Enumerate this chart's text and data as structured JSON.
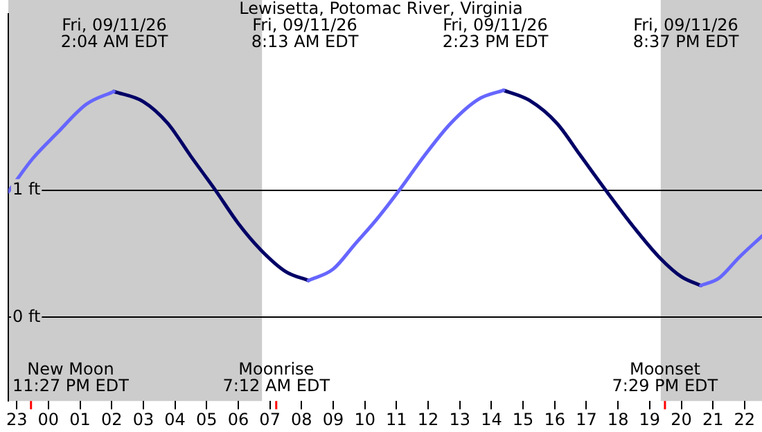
{
  "chart_data": {
    "type": "line",
    "title": "Lewisetta, Potomac River, Virginia",
    "series": [
      {
        "color": "#6666ff",
        "x": [
          "--09-10T22:44",
          "--09-10T23:30",
          "--09-11T00:16",
          "--09-11T01:12",
          "--09-11T02:04",
          "--09-11T05:00",
          "--09-11T08:13",
          "--09-11T09:00",
          "--09-11T09:40",
          "--09-11T10:24",
          "--09-11T11:05",
          "--09-11T11:54",
          "--09-11T12:43",
          "--09-11T13:36",
          "--09-11T14:23",
          "--09-11T18:00",
          "--09-11T20:37",
          "--09-11T21:12",
          "--09-11T21:49",
          "--09-11T22:33"
        ],
        "values": [
          0.99,
          1.25,
          1.45,
          1.68,
          1.78,
          null,
          0.29,
          0.38,
          0.57,
          0.78,
          1.0,
          1.28,
          1.53,
          1.72,
          1.79,
          null,
          0.25,
          0.31,
          0.47,
          0.64
        ]
      },
      {
        "color": "#000066",
        "x": [
          "--09-11T02:04",
          "--09-11T03:00",
          "--09-11T03:46",
          "--09-11T04:30",
          "--09-11T05:17",
          "--09-11T06:00",
          "--09-11T06:43",
          "--09-11T07:30",
          "--09-11T08:13",
          "--09-11T11:00",
          "--09-11T14:23",
          "--09-11T15:12",
          "--09-11T16:04",
          "--09-11T16:48",
          "--09-11T17:37",
          "--09-11T18:30",
          "--09-11T19:19",
          "--09-11T20:00",
          "--09-11T20:37"
        ],
        "values": [
          1.78,
          1.7,
          1.53,
          1.27,
          1.0,
          0.74,
          0.53,
          0.36,
          0.29,
          null,
          1.79,
          1.71,
          1.53,
          1.28,
          1.0,
          0.71,
          0.47,
          0.32,
          0.25
        ]
      }
    ],
    "xlim": [
      "--09-10T22:44",
      "--09-11T22:33"
    ],
    "xticks": [
      {
        "value": "--09-10T23:00",
        "label": "23"
      },
      {
        "value": "--09-11T00:00",
        "label": "00"
      },
      {
        "value": "--09-11T01:00",
        "label": "01"
      },
      {
        "value": "--09-11T02:00",
        "label": "02"
      },
      {
        "value": "--09-11T03:00",
        "label": "03"
      },
      {
        "value": "--09-11T04:00",
        "label": "04"
      },
      {
        "value": "--09-11T05:00",
        "label": "05"
      },
      {
        "value": "--09-11T06:00",
        "label": "06"
      },
      {
        "value": "--09-11T07:00",
        "label": "07"
      },
      {
        "value": "--09-11T08:00",
        "label": "08"
      },
      {
        "value": "--09-11T09:00",
        "label": "09"
      },
      {
        "value": "--09-11T10:00",
        "label": "10"
      },
      {
        "value": "--09-11T11:00",
        "label": "11"
      },
      {
        "value": "--09-11T12:00",
        "label": "12"
      },
      {
        "value": "--09-11T13:00",
        "label": "13"
      },
      {
        "value": "--09-11T14:00",
        "label": "14"
      },
      {
        "value": "--09-11T15:00",
        "label": "15"
      },
      {
        "value": "--09-11T16:00",
        "label": "16"
      },
      {
        "value": "--09-11T17:00",
        "label": "17"
      },
      {
        "value": "--09-11T18:00",
        "label": "18"
      },
      {
        "value": "--09-11T19:00",
        "label": "19"
      },
      {
        "value": "--09-11T20:00",
        "label": "20"
      },
      {
        "value": "--09-11T21:00",
        "label": "21"
      },
      {
        "value": "--09-11T22:00",
        "label": "22"
      }
    ],
    "ylim": [
      -0.66,
      2.39
    ],
    "yticks": [
      {
        "value": 0,
        "label": "0 ft"
      },
      {
        "value": 1,
        "label": "1 ft"
      }
    ],
    "grid": "y",
    "legend": false,
    "marker": "none",
    "line_style": "solid",
    "bands": [
      {
        "axis": "x",
        "from": "--09-10T22:44",
        "to": "--09-11T06:45",
        "color": "#cccccc"
      },
      {
        "axis": "x",
        "from": "--09-11T19:21",
        "to": "--09-11T22:33",
        "color": "#cccccc"
      }
    ],
    "ref_lines": [
      {
        "axis": "x",
        "value": "--09-10T23:27",
        "label": "New Moon\n11:27 PM EDT",
        "color": "#ff0000"
      },
      {
        "axis": "x",
        "value": "--09-11T07:12",
        "label": "Moonrise\n7:12 AM EDT",
        "color": "#ff0000"
      },
      {
        "axis": "x",
        "value": "--09-11T19:29",
        "label": "Moonset\n7:29 PM EDT",
        "color": "#ff0000"
      }
    ],
    "annotations": [
      "Fri, 09/11/26\n2:04 AM EDT",
      "Fri, 09/11/26\n8:13 AM EDT",
      "Fri, 09/11/26\n2:23 PM EDT",
      "Fri, 09/11/26\n8:37 PM EDT"
    ]
  }
}
